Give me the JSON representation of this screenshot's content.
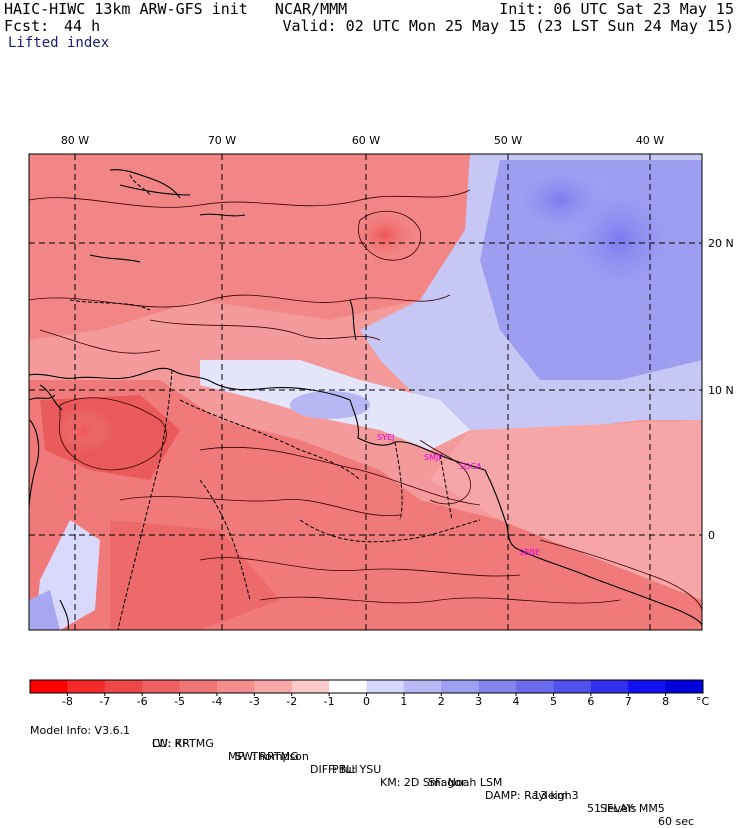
{
  "header": {
    "model_title": "HAIC-HIWC 13km ARW-GFS init   NCAR/MMM",
    "init_time": "Init: 06 UTC Sat 23 May 15",
    "forecast_label": "Fcst:",
    "forecast_hours": "44 h",
    "valid_time": "Valid: 02 UTC Mon 25 May 15 (23 LST Sun 24 May 15)",
    "field_name": "Lifted index"
  },
  "map": {
    "longitude_labels": [
      "80 W",
      "70 W",
      "60 W",
      "50 W",
      "40 W"
    ],
    "latitude_labels": [
      "20 N",
      "10 N",
      "0"
    ],
    "station_labels": [
      "SYEJ",
      "SMJP",
      "SOCA",
      "SBBE"
    ],
    "station_color": "#e000e0"
  },
  "colorbar": {
    "tick_labels": [
      "-8",
      "-7",
      "-6",
      "-5",
      "-4",
      "-3",
      "-2",
      "-1",
      "0",
      "1",
      "2",
      "3",
      "4",
      "5",
      "6",
      "7",
      "8"
    ],
    "unit": "°C",
    "colors": [
      "#ff0000",
      "#f42a2a",
      "#ee4747",
      "#ee5f5f",
      "#f17676",
      "#f48d8d",
      "#f7a8a8",
      "#fbcaca",
      "#ffffff",
      "#d6d6ff",
      "#b9b9f6",
      "#a0a0f2",
      "#8585ee",
      "#6b6bec",
      "#5050ea",
      "#3030ee",
      "#1010f2",
      "#0000dd"
    ]
  },
  "footer": {
    "line1": [
      "Model Info: V3.6.1",
      "CU: KF",
      "MP: Thompson",
      "PBL: YSU",
      "SF: Noah LSM",
      "13 km",
      "51 levels",
      "60 sec"
    ],
    "line2": [
      "LW: RRTMG",
      "SW: RRTMG",
      "DIFF: full",
      "KM: 2D Smagor",
      "DAMP: Rayleigh3",
      "SFLAY: MM5"
    ]
  }
}
